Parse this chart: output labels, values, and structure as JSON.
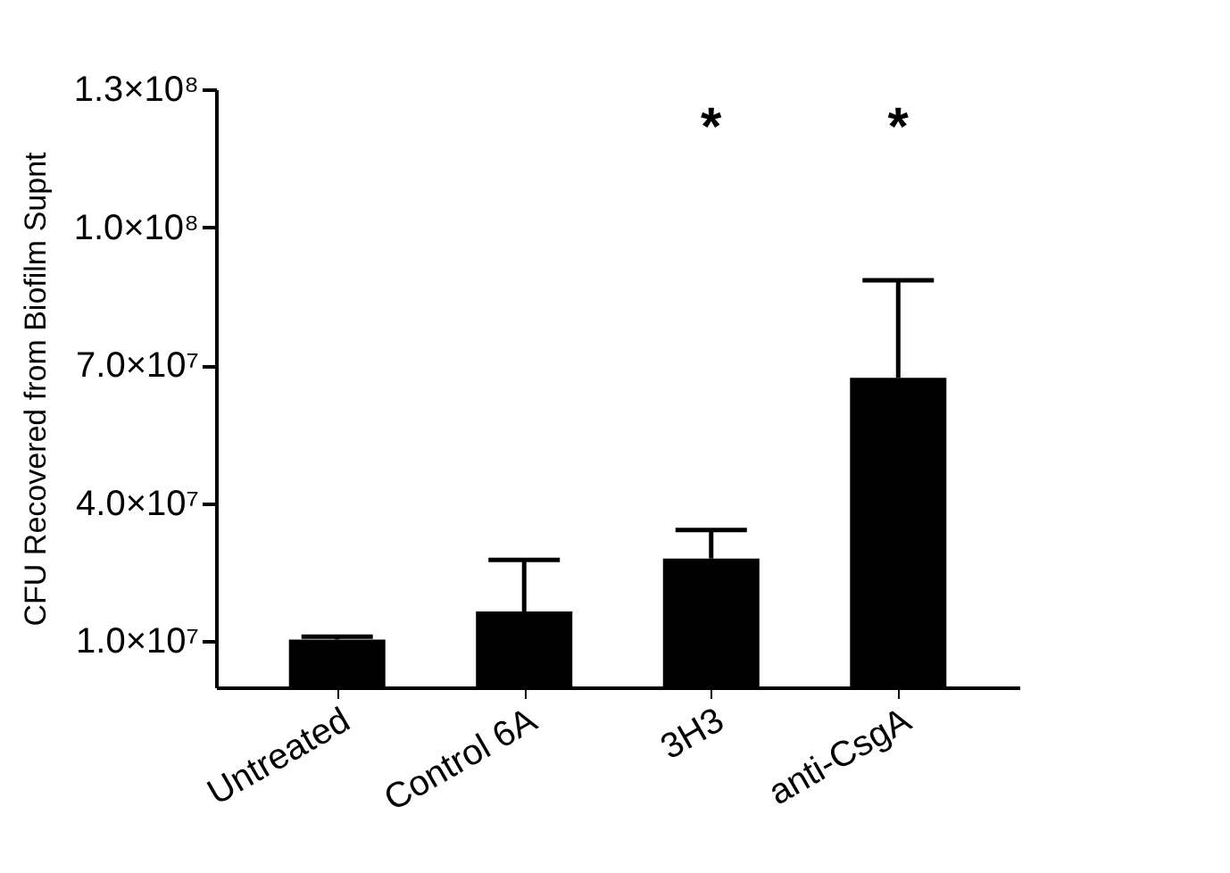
{
  "chart_data": {
    "type": "bar",
    "ylabel": "CFU Recovered from Biofilm Supnt",
    "categories": [
      "Untreated",
      "Control 6A",
      "3H3",
      "anti-CsgA"
    ],
    "values": [
      10400000,
      16500000,
      28000000,
      67300000
    ],
    "errors": [
      [
        10400000,
        11000000
      ],
      [
        16500000,
        27700000
      ],
      [
        28000000,
        34200000
      ],
      [
        67300000,
        88500000
      ]
    ],
    "color": "#000000",
    "ylim": [
      0,
      130000000
    ],
    "yticks": [
      {
        "value": 10000000,
        "label": "1.0×10⁷"
      },
      {
        "value": 40000000,
        "label": "4.0×10⁷"
      },
      {
        "value": 70000000,
        "label": "7.0×10⁷"
      },
      {
        "value": 100000000,
        "label": "1.0×10⁸"
      },
      {
        "value": 130000000,
        "label": "1.3×10⁸"
      }
    ],
    "annotations": [
      "*",
      "*"
    ],
    "grid": false
  }
}
